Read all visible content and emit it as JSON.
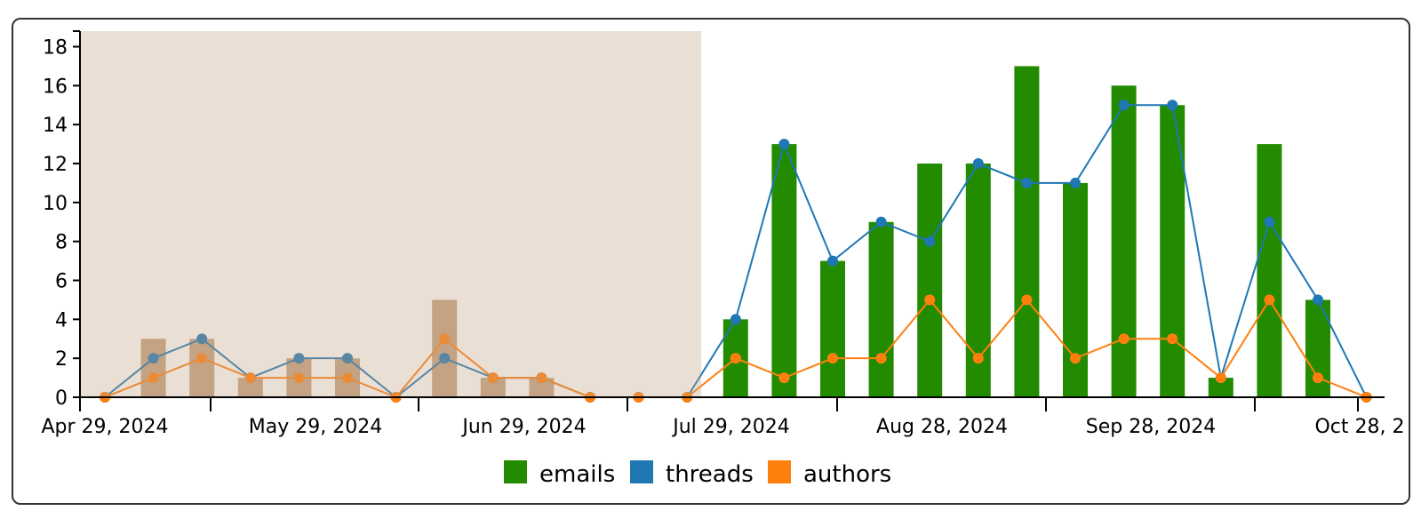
{
  "chart_data": {
    "type": "bar",
    "x_axis": {
      "tick_labels": [
        "Apr 29, 2024",
        "May 29, 2024",
        "Jun 29, 2024",
        "Jul 29, 2024",
        "Aug 28, 2024",
        "Sep 28, 2024",
        "Oct 28, 2"
      ]
    },
    "y_axis": {
      "ticks": [
        0,
        2,
        4,
        6,
        8,
        10,
        12,
        14,
        16,
        18
      ],
      "ylim": [
        0,
        18.8
      ]
    },
    "weeks": [
      "2024-04-29",
      "2024-05-06",
      "2024-05-13",
      "2024-05-20",
      "2024-05-27",
      "2024-06-03",
      "2024-06-10",
      "2024-06-17",
      "2024-06-24",
      "2024-07-01",
      "2024-07-08",
      "2024-07-15",
      "2024-07-22",
      "2024-07-29",
      "2024-08-05",
      "2024-08-12",
      "2024-08-19",
      "2024-08-26",
      "2024-09-02",
      "2024-09-09",
      "2024-09-16",
      "2024-09-23",
      "2024-09-30",
      "2024-10-07",
      "2024-10-14",
      "2024-10-21",
      "2024-10-28"
    ],
    "series": [
      {
        "name": "emails",
        "color": "#228b00",
        "faded_color": "#c4a484",
        "kind": "bar",
        "values": [
          0,
          3,
          3,
          1,
          2,
          2,
          0,
          5,
          1,
          1,
          0,
          0,
          0,
          4,
          13,
          7,
          9,
          12,
          12,
          17,
          11,
          16,
          15,
          1,
          13,
          5,
          0
        ]
      },
      {
        "name": "threads",
        "color": "#1f77b4",
        "kind": "line",
        "values": [
          0,
          2,
          3,
          1,
          2,
          2,
          0,
          2,
          1,
          1,
          0,
          0,
          0,
          4,
          13,
          7,
          9,
          8,
          12,
          11,
          11,
          15,
          15,
          1,
          9,
          5,
          0
        ]
      },
      {
        "name": "authors",
        "color": "#ff7f0e",
        "kind": "line",
        "values": [
          0,
          1,
          2,
          1,
          1,
          1,
          0,
          3,
          1,
          1,
          0,
          0,
          0,
          2,
          1,
          2,
          2,
          5,
          2,
          5,
          2,
          3,
          3,
          1,
          5,
          1,
          0
        ]
      }
    ],
    "faded_through_index": 12,
    "legend": {
      "position": "bottom-center",
      "items": [
        "emails",
        "threads",
        "authors"
      ]
    }
  }
}
